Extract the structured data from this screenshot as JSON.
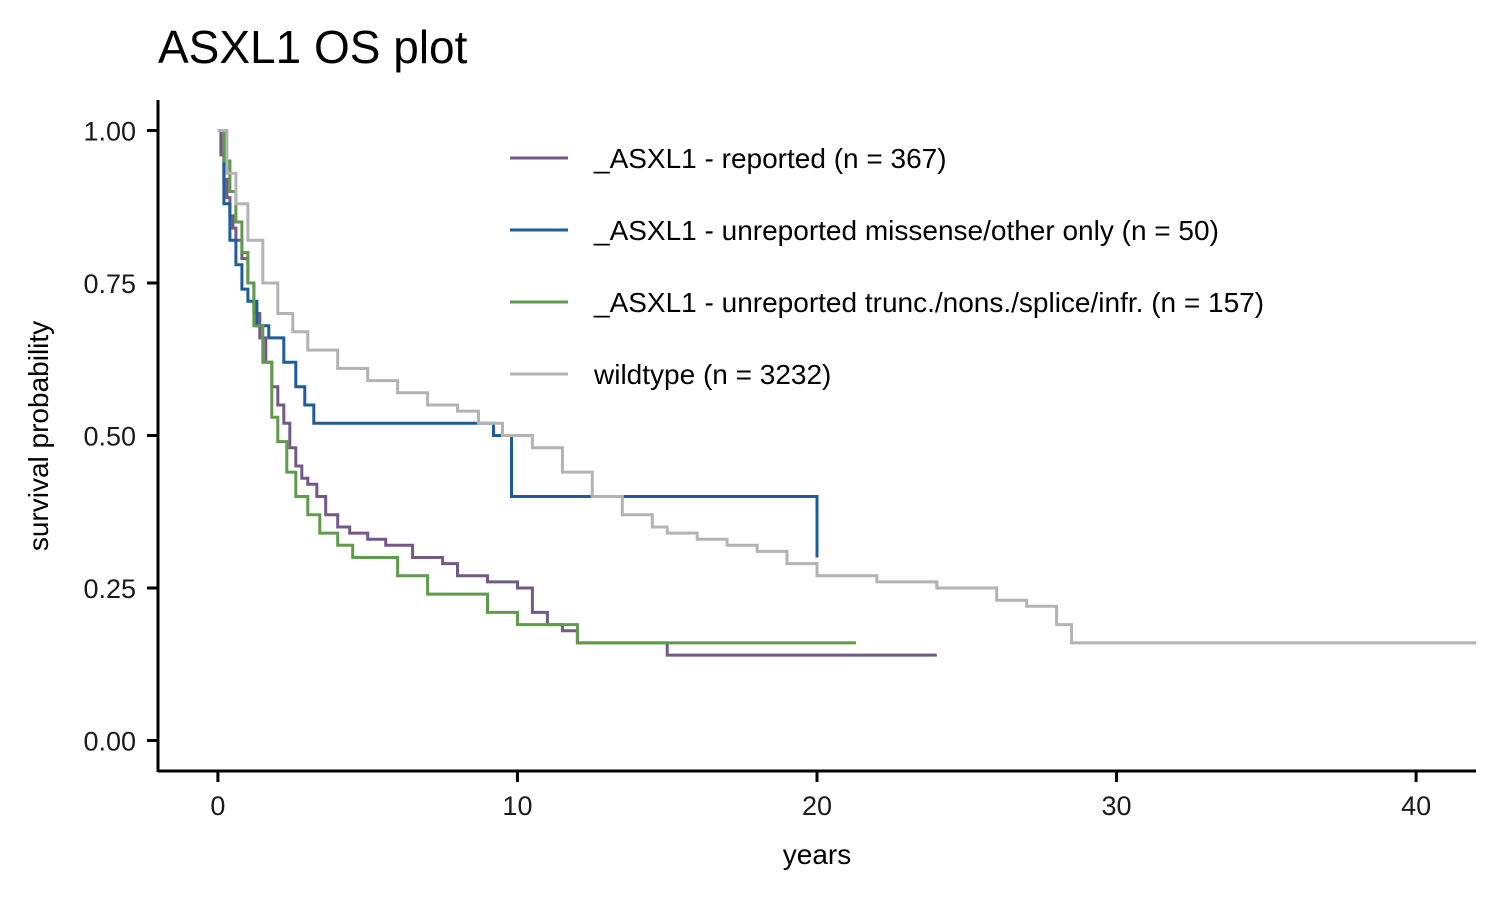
{
  "chart_data": {
    "type": "line",
    "step": true,
    "title": "ASXL1 OS plot",
    "xlabel": "years",
    "ylabel": "survival probability",
    "xlim": [
      -2,
      42
    ],
    "ylim": [
      -0.05,
      1.05
    ],
    "xticks": [
      0,
      10,
      20,
      30,
      40
    ],
    "xtick_labels": [
      "0",
      "10",
      "20",
      "30",
      "40"
    ],
    "yticks": [
      0,
      0.25,
      0.5,
      0.75,
      1.0
    ],
    "ytick_labels": [
      "0.00",
      "0.25",
      "0.50",
      "0.75",
      "1.00"
    ],
    "grid": false,
    "legend_position": "top-right",
    "series": [
      {
        "name": "_ASXL1 - reported (n = 367)",
        "color": "#745887",
        "x": [
          0,
          0.1,
          0.2,
          0.3,
          0.4,
          0.5,
          0.6,
          0.8,
          1.0,
          1.2,
          1.4,
          1.6,
          1.8,
          2.0,
          2.2,
          2.4,
          2.6,
          2.8,
          3.0,
          3.3,
          3.6,
          4.0,
          4.4,
          5.0,
          5.6,
          6.5,
          7.5,
          8.0,
          9.0,
          10.0,
          10.5,
          11.0,
          11.5,
          12.0,
          15.0,
          24.0
        ],
        "y": [
          1.0,
          0.96,
          0.92,
          0.89,
          0.86,
          0.84,
          0.82,
          0.79,
          0.75,
          0.7,
          0.66,
          0.62,
          0.58,
          0.55,
          0.52,
          0.48,
          0.45,
          0.43,
          0.42,
          0.4,
          0.37,
          0.35,
          0.34,
          0.33,
          0.32,
          0.3,
          0.29,
          0.27,
          0.26,
          0.25,
          0.21,
          0.19,
          0.18,
          0.16,
          0.14,
          0.14
        ]
      },
      {
        "name": "_ASXL1 - unreported missense/other only (n = 50)",
        "color": "#1f5c99",
        "x": [
          0,
          0.2,
          0.4,
          0.6,
          0.8,
          1.0,
          1.3,
          1.7,
          2.2,
          2.6,
          2.9,
          3.2,
          9.2,
          9.8,
          20.0
        ],
        "y": [
          1.0,
          0.88,
          0.82,
          0.78,
          0.74,
          0.72,
          0.68,
          0.66,
          0.62,
          0.58,
          0.55,
          0.52,
          0.5,
          0.4,
          0.3
        ]
      },
      {
        "name": "_ASXL1 - unreported trunc./nons./splice/infr. (n = 157)",
        "color": "#5f9a4d",
        "x": [
          0,
          0.2,
          0.4,
          0.6,
          0.8,
          1.0,
          1.2,
          1.5,
          1.8,
          2.0,
          2.3,
          2.6,
          3.0,
          3.4,
          4.0,
          4.5,
          6.0,
          7.0,
          9.0,
          10.0,
          12.0,
          21.3
        ],
        "y": [
          1.0,
          0.95,
          0.9,
          0.85,
          0.8,
          0.75,
          0.68,
          0.62,
          0.53,
          0.49,
          0.44,
          0.4,
          0.37,
          0.34,
          0.32,
          0.3,
          0.27,
          0.24,
          0.21,
          0.19,
          0.16,
          0.16
        ]
      },
      {
        "name": "wildtype (n = 3232)",
        "color": "#b3b3b3",
        "x": [
          0,
          0.3,
          0.6,
          1.0,
          1.5,
          2.0,
          2.5,
          3.0,
          4.0,
          5.0,
          6.0,
          7.0,
          8.0,
          8.7,
          9.5,
          10.5,
          11.5,
          12.5,
          13.5,
          14.5,
          15.0,
          16.0,
          17.0,
          18.0,
          19.0,
          20.0,
          22.0,
          24.0,
          26.0,
          27.0,
          28.0,
          28.5,
          42.0
        ],
        "y": [
          1.0,
          0.93,
          0.88,
          0.82,
          0.75,
          0.7,
          0.67,
          0.64,
          0.61,
          0.59,
          0.57,
          0.55,
          0.54,
          0.52,
          0.5,
          0.48,
          0.44,
          0.4,
          0.37,
          0.35,
          0.34,
          0.33,
          0.32,
          0.31,
          0.29,
          0.27,
          0.26,
          0.25,
          0.23,
          0.22,
          0.19,
          0.16,
          0.16
        ]
      }
    ]
  }
}
